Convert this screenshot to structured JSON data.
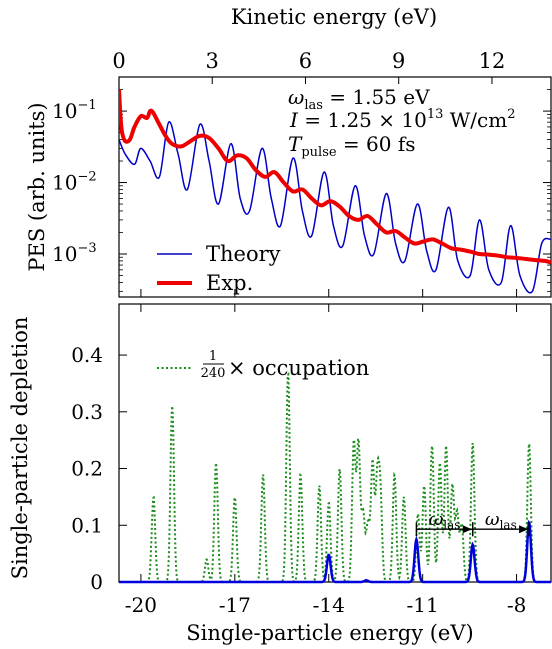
{
  "chart_data": [
    {
      "type": "line",
      "panel": "top",
      "ylabel": "PES (arb. units)",
      "top_axis_label": "Kinetic energy (eV)",
      "top_ticks": [
        "0",
        "3",
        "6",
        "9",
        "12"
      ],
      "x_range_ke": [
        0,
        13.9
      ],
      "y_scale": "log",
      "ylim": [
        0.00025,
        0.3
      ],
      "y_ticks": [
        {
          "value": 0.1,
          "base": "10",
          "exp": "−1"
        },
        {
          "value": 0.01,
          "base": "10",
          "exp": "−2"
        },
        {
          "value": 0.001,
          "base": "10",
          "exp": "−3"
        }
      ],
      "params": {
        "line1_var": "ω",
        "line1_sub": "las",
        "line1_val": " = 1.55 eV",
        "line2_var": "I",
        "line2_val": " = 1.25 × 10",
        "line2_exp": "13",
        "line2_unit": " W/cm",
        "line2_sup": "2",
        "line3_var": "T",
        "line3_sub": "pulse",
        "line3_val": " = 60 fs"
      },
      "legend_position": "bottom-left",
      "series": [
        {
          "name": "Theory",
          "color": "#0000c8",
          "x": [
            0,
            0.2,
            0.5,
            0.7,
            1.0,
            1.3,
            1.6,
            1.9,
            2.2,
            2.6,
            2.9,
            3.2,
            3.6,
            3.9,
            4.2,
            4.6,
            4.9,
            5.2,
            5.6,
            5.9,
            6.2,
            6.6,
            6.9,
            7.2,
            7.6,
            7.9,
            8.2,
            8.6,
            8.9,
            9.2,
            9.6,
            9.9,
            10.2,
            10.6,
            10.9,
            11.3,
            11.6,
            11.9,
            12.3,
            12.6,
            12.9,
            13.3,
            13.6,
            13.9
          ],
          "y": [
            0.04,
            0.025,
            0.018,
            0.03,
            0.02,
            0.012,
            0.07,
            0.025,
            0.008,
            0.065,
            0.02,
            0.005,
            0.035,
            0.006,
            0.004,
            0.03,
            0.006,
            0.0025,
            0.022,
            0.004,
            0.0018,
            0.014,
            0.0025,
            0.0013,
            0.009,
            0.0018,
            0.001,
            0.007,
            0.0014,
            0.0008,
            0.005,
            0.0011,
            0.0006,
            0.0045,
            0.0008,
            0.0005,
            0.003,
            0.0006,
            0.0004,
            0.0025,
            0.0005,
            0.0003,
            0.0014,
            0.0016
          ]
        },
        {
          "name": "Exp.",
          "color": "#ee0000",
          "x": [
            0,
            0.05,
            0.1,
            0.2,
            0.35,
            0.5,
            0.7,
            0.9,
            1.0,
            1.1,
            1.3,
            1.5,
            1.7,
            2.0,
            2.3,
            2.6,
            2.9,
            3.2,
            3.5,
            3.8,
            4.1,
            4.4,
            4.7,
            5.0,
            5.3,
            5.6,
            5.9,
            6.2,
            6.5,
            6.8,
            7.1,
            7.4,
            7.7,
            8.0,
            8.3,
            8.6,
            8.9,
            9.2,
            9.5,
            9.8,
            10.1,
            10.4,
            10.7,
            11.0,
            11.3,
            11.6,
            11.9,
            12.2,
            12.5,
            12.8,
            13.1,
            13.4,
            13.7,
            13.9
          ],
          "y": [
            0.2,
            0.08,
            0.05,
            0.038,
            0.04,
            0.06,
            0.085,
            0.08,
            0.1,
            0.095,
            0.065,
            0.045,
            0.035,
            0.032,
            0.038,
            0.045,
            0.042,
            0.03,
            0.02,
            0.024,
            0.022,
            0.015,
            0.012,
            0.014,
            0.01,
            0.0075,
            0.008,
            0.006,
            0.0048,
            0.0055,
            0.0046,
            0.0034,
            0.003,
            0.0034,
            0.0026,
            0.002,
            0.0021,
            0.0017,
            0.0014,
            0.0015,
            0.0016,
            0.0014,
            0.0012,
            0.00115,
            0.00108,
            0.001,
            0.00098,
            0.00095,
            0.0009,
            0.00088,
            0.00085,
            0.00082,
            0.0008,
            0.00076
          ]
        }
      ]
    },
    {
      "type": "line",
      "panel": "bottom",
      "xlabel": "Single-particle energy (eV)",
      "ylabel": "Single-particle depletion",
      "x_range": [
        -20.7,
        -6.9
      ],
      "x_ticks": [
        "-20",
        "-17",
        "-14",
        "-11",
        "-8"
      ],
      "ylim": [
        0,
        0.49
      ],
      "y_ticks": [
        "0",
        "0.1",
        "0.2",
        "0.3",
        "0.4"
      ],
      "legend": {
        "num": "1",
        "den": "240",
        "text": "× occupation"
      },
      "legend_position": "top-left",
      "annotation_label": "ω",
      "annotation_sub": "las",
      "occupation_color": "#1a8c1a",
      "depletion_color": "#0000dd",
      "occupation_peaks": {
        "x": [
          -19.6,
          -19.0,
          -17.9,
          -17.6,
          -17.0,
          -16.1,
          -15.3,
          -14.9,
          -14.3,
          -14.0,
          -13.65,
          -13.2,
          -13.05,
          -12.9,
          -12.75,
          -12.6,
          -12.45,
          -12.35,
          -11.9,
          -11.6,
          -11.15,
          -10.95,
          -10.7,
          -10.45,
          -10.25,
          -10.05,
          -9.9,
          -9.75,
          -9.4,
          -7.6
        ],
        "y": [
          0.15,
          0.31,
          0.04,
          0.21,
          0.15,
          0.19,
          0.37,
          0.19,
          0.17,
          0.14,
          0.2,
          0.245,
          0.245,
          0.12,
          0.1,
          0.21,
          0.175,
          0.15,
          0.19,
          0.15,
          0.12,
          0.17,
          0.24,
          0.21,
          0.24,
          0.17,
          0.12,
          0.1,
          0.245,
          0.245
        ]
      },
      "depletion_peaks": {
        "x": [
          -14.0,
          -12.8,
          -11.2,
          -9.4,
          -7.6
        ],
        "y": [
          0.048,
          0.003,
          0.075,
          0.066,
          0.105
        ]
      }
    }
  ]
}
